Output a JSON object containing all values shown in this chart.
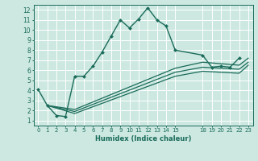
{
  "xlabel": "Humidex (Indice chaleur)",
  "ylabel": "",
  "bg_color": "#cce8e0",
  "grid_color": "#ffffff",
  "line_color": "#1a6b5a",
  "xlim": [
    -0.5,
    23.5
  ],
  "ylim": [
    0.5,
    12.5
  ],
  "xtick_positions": [
    0,
    1,
    2,
    3,
    4,
    5,
    6,
    7,
    8,
    9,
    10,
    11,
    12,
    13,
    14,
    15,
    18,
    19,
    20,
    21,
    22,
    23
  ],
  "xtick_labels": [
    "0",
    "1",
    "2",
    "3",
    "4",
    "5",
    "6",
    "7",
    "8",
    "9",
    "10",
    "11",
    "12",
    "13",
    "14",
    "15",
    "18",
    "19",
    "20",
    "21",
    "22",
    "23"
  ],
  "ytick_positions": [
    1,
    2,
    3,
    4,
    5,
    6,
    7,
    8,
    9,
    10,
    11,
    12
  ],
  "ytick_labels": [
    "1",
    "2",
    "3",
    "4",
    "5",
    "6",
    "7",
    "8",
    "9",
    "10",
    "11",
    "12"
  ],
  "series": [
    {
      "x": [
        0,
        1,
        2,
        3,
        4,
        5,
        6,
        7,
        8,
        9,
        10,
        11,
        12,
        13,
        14,
        15,
        18,
        19,
        20,
        21,
        22
      ],
      "y": [
        4.1,
        2.5,
        1.5,
        1.4,
        5.4,
        5.4,
        6.4,
        7.8,
        9.4,
        11.0,
        10.2,
        11.1,
        12.2,
        11.0,
        10.4,
        8.0,
        7.5,
        6.3,
        6.4,
        6.3,
        7.2
      ],
      "marker": "D",
      "markersize": 2.0,
      "linewidth": 1.0
    },
    {
      "x": [
        1,
        4,
        15,
        18,
        22,
        23
      ],
      "y": [
        2.5,
        2.1,
        6.2,
        6.8,
        6.5,
        7.2
      ],
      "marker": null,
      "linewidth": 0.9
    },
    {
      "x": [
        1,
        4,
        15,
        18,
        22,
        23
      ],
      "y": [
        2.5,
        1.9,
        5.8,
        6.3,
        6.1,
        6.8
      ],
      "marker": null,
      "linewidth": 0.9
    },
    {
      "x": [
        1,
        4,
        15,
        18,
        22,
        23
      ],
      "y": [
        2.5,
        1.7,
        5.4,
        5.9,
        5.7,
        6.5
      ],
      "marker": null,
      "linewidth": 0.9
    }
  ]
}
